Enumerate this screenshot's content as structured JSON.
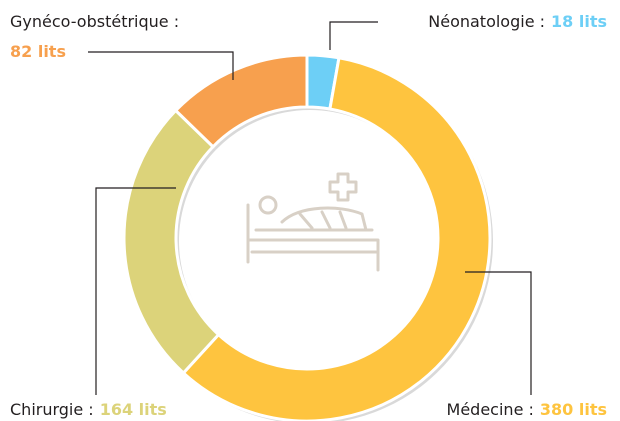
{
  "chart_data": {
    "type": "donut",
    "categories": [
      "Néonatologie :",
      "Médecine :",
      "Chirurgie :",
      "Gynéco-obstétrique :"
    ],
    "values": [
      18,
      380,
      164,
      82
    ],
    "value_labels": [
      "18 lits",
      "380 lits",
      "164 lits",
      "82 lits"
    ],
    "colors": [
      "#6dcff6",
      "#fec43f",
      "#dcd37a",
      "#f7a04e"
    ]
  }
}
